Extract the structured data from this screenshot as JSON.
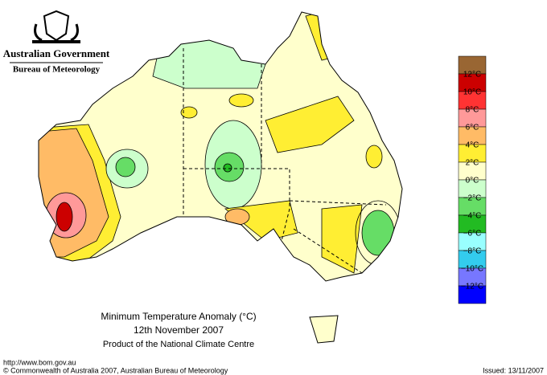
{
  "header": {
    "title": "Australian Government",
    "subtitle": "Bureau of Meteorology"
  },
  "map": {
    "title": "Minimum Temperature Anomaly (°C)",
    "date": "12th November 2007",
    "note": "Product of the National Climate Centre"
  },
  "legend": {
    "colors": [
      "#996633",
      "#cc0000",
      "#ff3333",
      "#ff9999",
      "#ffbb66",
      "#ffee33",
      "#ffffcc",
      "#ccffcc",
      "#66dd66",
      "#22bb22",
      "#99ffff",
      "#33ccee",
      "#7777ff",
      "#0000ff"
    ],
    "ticks": [
      {
        "value": 12,
        "label": "12°C"
      },
      {
        "value": 10,
        "label": "10°C"
      },
      {
        "value": 8,
        "label": "8°C"
      },
      {
        "value": 6,
        "label": "6°C"
      },
      {
        "value": 4,
        "label": "4°C"
      },
      {
        "value": 2,
        "label": "2°C"
      },
      {
        "value": 0,
        "label": "0°C"
      },
      {
        "value": -2,
        "label": "−2°C"
      },
      {
        "value": -4,
        "label": "−4°C"
      },
      {
        "value": -6,
        "label": "−6°C"
      },
      {
        "value": -8,
        "label": "−8°C"
      },
      {
        "value": -10,
        "label": "−10°C"
      },
      {
        "value": -12,
        "label": "−12°C"
      }
    ]
  },
  "footer": {
    "url": "http://www.bom.gov.au",
    "copyright": "© Commonwealth of Australia 2007, Australian Bureau of Meteorology",
    "issued": "Issued: 13/11/2007"
  }
}
